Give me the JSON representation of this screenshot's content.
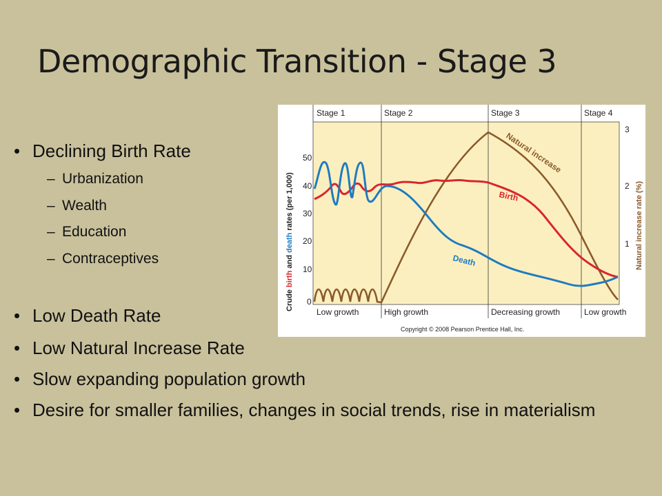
{
  "slide": {
    "title": "Demographic Transition - Stage 3",
    "bullets": [
      {
        "text": "Declining Birth Rate",
        "subs": [
          "Urbanization",
          "Wealth",
          "Education",
          "Contraceptives"
        ]
      },
      {
        "text": "Low Death Rate"
      },
      {
        "text": "Low Natural Increase Rate"
      },
      {
        "text": "Slow expanding population growth"
      },
      {
        "text": "Desire for smaller families, changes in social trends, rise in materialism"
      }
    ],
    "bullet_char": "•",
    "dash_char": "–"
  },
  "figure": {
    "stages": [
      "Stage 1",
      "Stage 2",
      "Stage 3",
      "Stage 4"
    ],
    "growth_labels": [
      "Low growth",
      "High growth",
      "Decreasing growth",
      "Low growth"
    ],
    "left_axis_ticks": [
      "50",
      "40",
      "30",
      "20",
      "10",
      "0"
    ],
    "right_axis_ticks": [
      "3",
      "2",
      "1"
    ],
    "y_label_parts": [
      "Crude ",
      "birth",
      " and ",
      "death",
      " rates (per 1,000)"
    ],
    "right_label": "Natural increase rate (%)",
    "series_labels": {
      "birth": "Birth",
      "death": "Death",
      "natural": "Natural increase"
    },
    "copyright": "Copyright © 2008 Pearson Prentice Hall, Inc.",
    "colors": {
      "birth": "#d8262e",
      "death": "#1f7bc0",
      "natural": "#8a5a2b",
      "panel": "#fcefbf",
      "frame": "#ffffff"
    }
  }
}
